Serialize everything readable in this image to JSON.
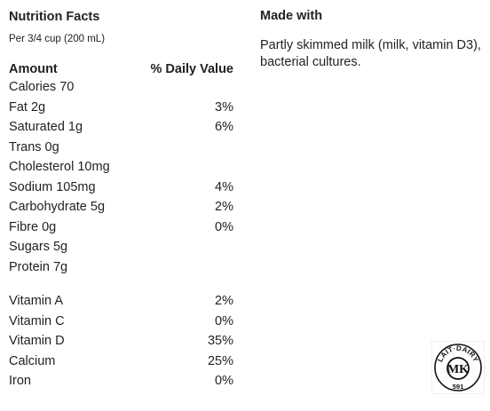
{
  "nutrition": {
    "title": "Nutrition Facts",
    "serving": "Per 3/4 cup (200 mL)",
    "amount_header": "Amount",
    "dv_header": "% Daily Value",
    "rows": [
      {
        "label": "Calories 70",
        "dv": ""
      },
      {
        "label": "Fat 2g",
        "dv": "3%"
      },
      {
        "label": "Saturated 1g",
        "dv": "6%"
      },
      {
        "label": "Trans 0g",
        "dv": ""
      },
      {
        "label": "Cholesterol 10mg",
        "dv": ""
      },
      {
        "label": "Sodium 105mg",
        "dv": "4%"
      },
      {
        "label": "Carbohydrate 5g",
        "dv": "2%"
      },
      {
        "label": "Fibre 0g",
        "dv": "0%"
      },
      {
        "label": "Sugars 5g",
        "dv": ""
      },
      {
        "label": "Protein 7g",
        "dv": ""
      }
    ],
    "vitamins": [
      {
        "label": "Vitamin A",
        "dv": "2%"
      },
      {
        "label": "Vitamin C",
        "dv": "0%"
      },
      {
        "label": "Vitamin D",
        "dv": "35%"
      },
      {
        "label": "Calcium",
        "dv": "25%"
      },
      {
        "label": "Iron",
        "dv": "0%"
      }
    ]
  },
  "made_with": {
    "title": "Made with",
    "text": "Partly skimmed milk (milk, vitamin D3), bacterial cultures."
  },
  "logo": {
    "top_text": "LAIT·DAIRY",
    "initials": "MK",
    "number": "591"
  },
  "colors": {
    "text": "#222222",
    "background": "#ffffff"
  }
}
